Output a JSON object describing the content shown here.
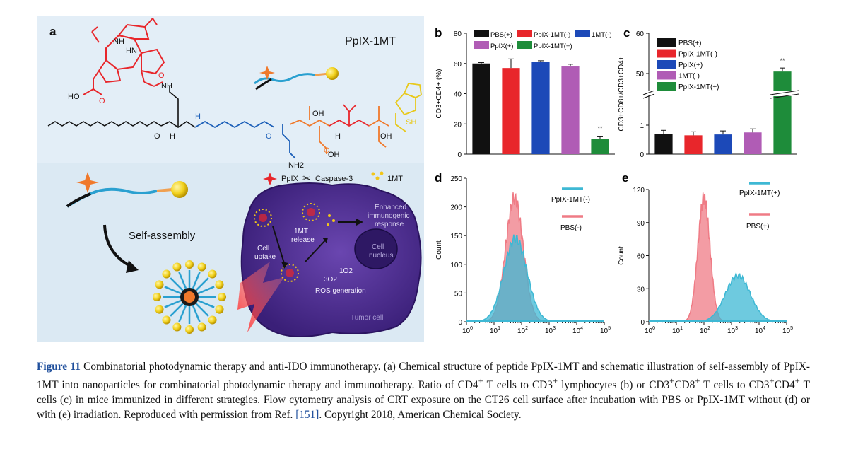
{
  "panel_labels": {
    "a": "a",
    "b": "b",
    "c": "c",
    "d": "d",
    "e": "e"
  },
  "panel_a": {
    "title": "PpIX-1MT",
    "self_assembly": "Self-assembly",
    "legend": {
      "ppix": "PpIX",
      "caspase": "Caspase-3",
      "onemt": "1MT"
    },
    "cell_labels": {
      "cell_uptake_1": "Cell",
      "cell_uptake_2": "uptake",
      "release_1": "1MT",
      "release_2": "release",
      "enhanced_1": "Enhanced",
      "enhanced_2": "immunogenic",
      "enhanced_3": "response",
      "nucleus_1": "Cell",
      "nucleus_2": "nucleus",
      "singlet": "1O2",
      "triplet": "3O2",
      "ros": "ROS generation",
      "tumor": "Tumor cell"
    },
    "chem_labels": {
      "ho": "HO",
      "o": "O",
      "oh": "OH",
      "h": "H",
      "n": "N",
      "nh": "NH",
      "hn": "HN",
      "nh2": "NH2",
      "sh": "SH"
    },
    "colors": {
      "porphyrin": "#e8262b",
      "glu": "#f0792b",
      "val": "#e8262b",
      "cys": "#e8c91c",
      "peg": "#1c5fb8",
      "cell": "#4b2a8c"
    }
  },
  "chart_data": [
    {
      "panel": "b",
      "type": "bar",
      "ylabel": "CD3+CD4+ (%)",
      "categories": [
        "PBS(+)",
        "PpIX-1MT(-)",
        "1MT(-)",
        "PpIX(+)",
        "PpIX-1MT(+)"
      ],
      "values": [
        60,
        57,
        61,
        58,
        10
      ],
      "errors": [
        0.6,
        6,
        0.8,
        1.5,
        1.5
      ],
      "colors": [
        "#111111",
        "#e8262b",
        "#1c49b8",
        "#b05cb5",
        "#1e8c3a"
      ],
      "ylim": [
        0,
        80
      ],
      "yticks": [
        0,
        20,
        40,
        60,
        80
      ],
      "annotation": "**",
      "legend": "top"
    },
    {
      "panel": "c",
      "type": "bar",
      "ylabel": "CD3+CD8+/CD3+CD4+",
      "categories": [
        "PBS(+)",
        "PpIX-1MT(-)",
        "PpIX(+)",
        "1MT(-)",
        "PpIX-1MT(+)"
      ],
      "values": [
        0.7,
        0.65,
        0.68,
        0.75,
        50.5
      ],
      "colors": [
        "#111111",
        "#e8262b",
        "#1c49b8",
        "#b05cb5",
        "#1e8c3a"
      ],
      "yticks": [
        0,
        1,
        50,
        60
      ],
      "axis_break": true,
      "annotation": "**",
      "legend": "top-left"
    },
    {
      "panel": "d",
      "type": "area",
      "xlabel": "",
      "ylabel": "Count",
      "xscale": "log",
      "xticks": [
        "10^0",
        "10^1",
        "10^2",
        "10^3",
        "10^4",
        "10^5"
      ],
      "ylim": [
        0,
        250
      ],
      "yticks": [
        0,
        50,
        100,
        150,
        200,
        250
      ],
      "series": [
        {
          "name": "PpIX-1MT(-)",
          "color": "#3eb8d4",
          "peak_x": 60,
          "peak_y": 145
        },
        {
          "name": "PBS(-)",
          "color": "#ef7b85",
          "peak_x": 55,
          "peak_y": 215
        }
      ]
    },
    {
      "panel": "e",
      "type": "area",
      "xlabel": "",
      "ylabel": "Count",
      "xscale": "log",
      "xticks": [
        "10^0",
        "10^1",
        "10^2",
        "10^3",
        "10^4",
        "10^5"
      ],
      "ylim": [
        0,
        120
      ],
      "yticks": [
        0,
        30,
        60,
        90,
        120
      ],
      "series": [
        {
          "name": "PpIX-1MT(+)",
          "color": "#3eb8d4",
          "peak_x": 1700,
          "peak_y": 42
        },
        {
          "name": "PBS(+)",
          "color": "#ef7b85",
          "peak_x": 100,
          "peak_y": 112
        }
      ]
    }
  ],
  "caption": {
    "figure_label": "Figure 11",
    "text_1": " Combinatorial photodynamic therapy and anti-IDO immunotherapy. (a) Chemical structure of peptide PpIX-1MT and schematic illustration of self-assembly of PpIX-1MT into nanoparticles for combinatorial photodynamic therapy and immunotherapy. Ratio of CD4",
    "sup_1": "+",
    "text_2": " T cells to CD3",
    "sup_2": "+",
    "text_3": " lymphocytes (b) or CD3",
    "sup_3": "+",
    "text_4": "CD8",
    "sup_4": "+",
    "text_5": " T cells to CD3",
    "sup_5": "+",
    "text_6": "CD4",
    "sup_6": "+",
    "text_7": " T cells (c) in mice immunized in different strategies. Flow cytometry analysis of CRT exposure on the CT26 cell surface after incubation with PBS or PpIX-1MT without (d) or with (e) irradiation. Reproduced with permission from Ref. ",
    "ref": "[151]",
    "text_8": ". Copyright 2018, American Chemical Society."
  }
}
